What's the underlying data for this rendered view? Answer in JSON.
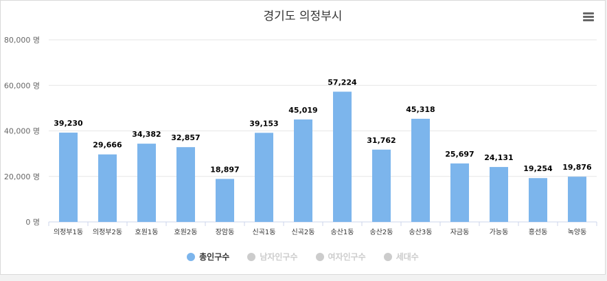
{
  "chart_data": {
    "type": "bar",
    "title": "경기도 의정부시",
    "categories": [
      "의정부1동",
      "의정부2동",
      "호원1동",
      "호원2동",
      "장암동",
      "신곡1동",
      "신곡2동",
      "송산1동",
      "송산2동",
      "송산3동",
      "자금동",
      "가능동",
      "흥선동",
      "녹양동"
    ],
    "series": [
      {
        "name": "총인구수",
        "values": [
          39230,
          29666,
          34382,
          32857,
          18897,
          39153,
          45019,
          57224,
          31762,
          45318,
          25697,
          24131,
          19254,
          19876
        ]
      }
    ],
    "data_labels": [
      "39,230",
      "29,666",
      "34,382",
      "32,857",
      "18,897",
      "39,153",
      "45,019",
      "57,224",
      "31,762",
      "45,318",
      "25,697",
      "24,131",
      "19,254",
      "19,876"
    ],
    "y_ticks": [
      "0 명",
      "20,000 명",
      "40,000 명",
      "60,000 명",
      "80,000 명"
    ],
    "y_tick_values": [
      0,
      20000,
      40000,
      60000,
      80000
    ],
    "ylim": [
      0,
      80000
    ],
    "grid": true,
    "legend_placement": "bottom-center"
  },
  "legend": [
    {
      "label": "총인구수",
      "color": "#7cb5ec",
      "active": true
    },
    {
      "label": "남자인구수",
      "color": "#cccccc",
      "active": false
    },
    {
      "label": "여자인구수",
      "color": "#cccccc",
      "active": false
    },
    {
      "label": "세대수",
      "color": "#cccccc",
      "active": false
    }
  ],
  "colors": {
    "bar": "#7cb5ec",
    "grid": "#e6e6e6",
    "axis": "#ccd6eb",
    "inactive_text": "#cccccc",
    "active_text": "#333333"
  },
  "menu_icon": "hamburger-menu-icon"
}
